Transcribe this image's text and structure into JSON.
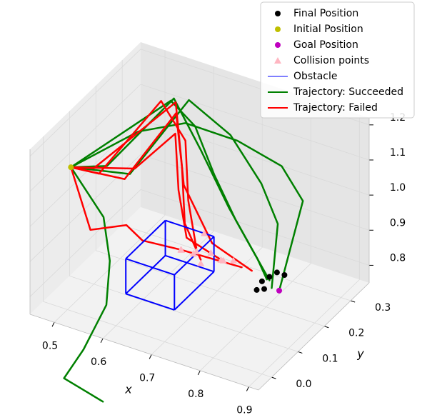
{
  "chart_data": {
    "type": "line3d",
    "xlabel": "x",
    "ylabel": "y",
    "xlim": [
      0.45,
      0.92
    ],
    "ylim": [
      -0.05,
      0.37
    ],
    "zlim": [
      0.75,
      1.22
    ],
    "xticks": [
      0.5,
      0.6,
      0.7,
      0.8,
      0.9
    ],
    "yticks": [
      {
        "value": 0,
        "label": "0.0"
      },
      0.1,
      0.2,
      0.3
    ],
    "zticks": [
      0.8,
      0.9,
      {
        "value": 1,
        "label": "1.0"
      },
      1.1,
      1.2
    ],
    "grid": true,
    "legend": "upper right",
    "series": [
      {
        "name": "Final Position",
        "color": "#000000",
        "marker": "o",
        "x": [
          0.77,
          0.78,
          0.79,
          0.78,
          0.8,
          0.77
        ],
        "y": [
          0.24,
          0.25,
          0.26,
          0.23,
          0.27,
          0.22
        ],
        "z": [
          0.78,
          0.79,
          0.8,
          0.77,
          0.79,
          0.77
        ]
      },
      {
        "name": "Initial Position",
        "color": "#bfbf00",
        "marker": "o",
        "x": [
          0.48
        ],
        "y": [
          0.05
        ],
        "z": [
          1.11
        ]
      },
      {
        "name": "Goal Position",
        "color": "#bf00bf",
        "marker": "o",
        "x": [
          0.8
        ],
        "y": [
          0.25
        ],
        "z": [
          0.76
        ]
      },
      {
        "name": "Collision points",
        "color": "#ffb6c1",
        "marker": "^",
        "x": [
          0.68,
          0.7,
          0.72,
          0.74,
          0.76,
          0.69,
          0.71,
          0.73,
          0.75,
          0.7
        ],
        "y": [
          0.1,
          0.12,
          0.1,
          0.14,
          0.15,
          0.08,
          0.09,
          0.12,
          0.13,
          0.15
        ],
        "z": [
          0.93,
          0.92,
          0.91,
          0.9,
          0.9,
          0.95,
          0.94,
          0.93,
          0.91,
          0.95
        ]
      },
      {
        "name": "Obstacle",
        "color": "#0000ff",
        "marker": "box",
        "x": [
          0.62,
          0.72
        ],
        "y": [
          0,
          0.15
        ],
        "z": [
          0.85,
          0.95
        ]
      },
      {
        "name": "Trajectory: Succeeded",
        "color": "#008000",
        "marker": "line",
        "lines": [
          {
            "x": [
              0.48,
              0.5,
              0.54,
              0.6,
              0.68,
              0.74,
              0.78
            ],
            "y": [
              0.05,
              0.15,
              0.33,
              0.32,
              0.28,
              0.26,
              0.25
            ],
            "z": [
              1.11,
              1.05,
              1.13,
              1.02,
              0.92,
              0.84,
              0.78
            ]
          },
          {
            "x": [
              0.48,
              0.52,
              0.56,
              0.64,
              0.72,
              0.77,
              0.79
            ],
            "y": [
              0.05,
              0.2,
              0.35,
              0.36,
              0.33,
              0.3,
              0.24
            ],
            "z": [
              1.11,
              1.0,
              1.12,
              1.05,
              0.97,
              0.9,
              0.77
            ]
          },
          {
            "x": [
              0.48,
              0.51,
              0.58,
              0.66,
              0.74,
              0.8,
              0.8
            ],
            "y": [
              0.05,
              0.25,
              0.3,
              0.35,
              0.37,
              0.34,
              0.25
            ],
            "z": [
              1.11,
              1.08,
              1.1,
              1.05,
              1.0,
              0.95,
              0.76
            ]
          },
          {
            "x": [
              0.48,
              0.52,
              0.56,
              0.58,
              0.56,
              0.52,
              0.6
            ],
            "y": [
              0.05,
              0.1,
              0.05,
              0,
              -0.05,
              -0.05,
              -0.05
            ],
            "z": [
              1.11,
              0.95,
              0.88,
              0.8,
              0.7,
              0.6,
              0.57
            ]
          },
          {
            "x": [
              0.48,
              0.55,
              0.6,
              0.65,
              0.7,
              0.75,
              0.78
            ],
            "y": [
              0.05,
              0.3,
              0.3,
              0.28,
              0.27,
              0.26,
              0.24
            ],
            "z": [
              1.11,
              1.15,
              1.1,
              1.0,
              0.9,
              0.82,
              0.79
            ]
          }
        ]
      },
      {
        "name": "Trajectory: Failed",
        "color": "#ff0000",
        "marker": "line",
        "lines": [
          {
            "x": [
              0.48,
              0.5,
              0.53,
              0.58,
              0.64,
              0.7
            ],
            "y": [
              0.05,
              0.12,
              0.3,
              0.3,
              0.2,
              0.12
            ],
            "z": [
              1.11,
              1.05,
              1.14,
              1.05,
              0.98,
              0.93
            ]
          },
          {
            "x": [
              0.48,
              0.52,
              0.55,
              0.6,
              0.66,
              0.72
            ],
            "y": [
              0.05,
              0.18,
              0.32,
              0.25,
              0.15,
              0.1
            ],
            "z": [
              1.11,
              1.0,
              1.1,
              1.02,
              0.96,
              0.92
            ]
          },
          {
            "x": [
              0.48,
              0.5,
              0.56,
              0.62,
              0.7,
              0.76
            ],
            "y": [
              0.05,
              0.1,
              0.3,
              0.22,
              0.18,
              0.22
            ],
            "z": [
              1.11,
              1.08,
              1.15,
              1.0,
              0.9,
              0.82
            ]
          },
          {
            "x": [
              0.48,
              0.53,
              0.57,
              0.62,
              0.68,
              0.74
            ],
            "y": [
              0.05,
              0.2,
              0.28,
              0.2,
              0.12,
              0.14
            ],
            "z": [
              1.11,
              1.02,
              1.08,
              1.0,
              0.95,
              0.9
            ]
          },
          {
            "x": [
              0.48,
              0.52,
              0.54,
              0.6,
              0.68,
              0.75
            ],
            "y": [
              0.05,
              0.05,
              0.15,
              0.1,
              0.1,
              0.2
            ],
            "z": [
              1.11,
              0.95,
              0.9,
              0.92,
              0.93,
              0.84
            ]
          }
        ]
      }
    ]
  }
}
